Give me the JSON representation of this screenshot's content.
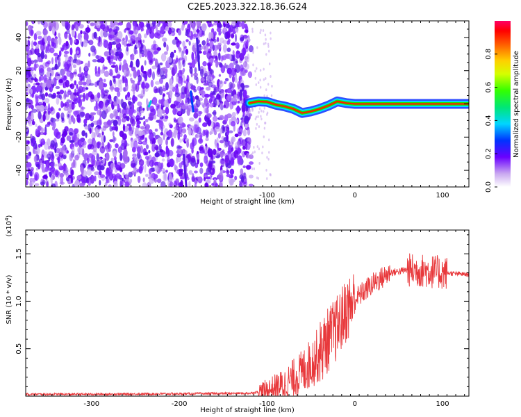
{
  "title": "C2E5.2023.322.18.36.G24",
  "chart_data": [
    {
      "type": "heatmap",
      "xlabel": "Height of straight line (km)",
      "ylabel": "Frequency (Hz)",
      "xlim": [
        -375,
        130
      ],
      "ylim": [
        -50,
        50
      ],
      "xticks": [
        -300,
        -200,
        -100,
        0,
        100
      ],
      "yticks": [
        -40,
        -20,
        0,
        20,
        40
      ],
      "colorbar": {
        "label": "Normalized spectral amplitude",
        "range": [
          0.0,
          1.0
        ],
        "ticks": [
          0.0,
          0.2,
          0.4,
          0.6,
          0.8
        ],
        "tick_labels": [
          "0.0",
          "0.2",
          "0.4",
          "0.6",
          "0.8"
        ]
      },
      "noise_region_x": [
        -375,
        -118
      ],
      "signal_trace": {
        "x": [
          -120,
          -110,
          -100,
          -90,
          -80,
          -70,
          -60,
          -55,
          -50,
          -40,
          -30,
          -20,
          -10,
          0,
          50,
          100,
          130
        ],
        "y": [
          0.5,
          1.5,
          1.2,
          -0.5,
          -1.5,
          -3,
          -5.5,
          -5,
          -4.5,
          -3,
          -1,
          1.5,
          0.5,
          0,
          0,
          0,
          0
        ]
      }
    },
    {
      "type": "line",
      "xlabel": "Height of straight line (km)",
      "ylabel": "SNR (10 * v/v)",
      "y_multiplier": "(x10",
      "y_multiplier_exp": "4",
      "y_multiplier_close": ")",
      "xlim": [
        -375,
        130
      ],
      "ylim": [
        0,
        1.75
      ],
      "xticks": [
        -300,
        -200,
        -100,
        0,
        100
      ],
      "yticks": [
        0.5,
        1.0,
        1.5
      ],
      "ytick_labels": [
        "0.5",
        "1.0",
        "1.5"
      ],
      "color": "#e8393c",
      "series": [
        {
          "x": [
            -375,
            -300,
            -200,
            -120,
            -100,
            -80,
            -60,
            -40,
            -30,
            -20,
            -10,
            0,
            20,
            40,
            60,
            80,
            100,
            130
          ],
          "values": [
            0.02,
            0.02,
            0.025,
            0.03,
            0.06,
            0.12,
            0.25,
            0.45,
            0.6,
            0.72,
            0.9,
            1.02,
            1.18,
            1.3,
            1.33,
            1.32,
            1.3,
            1.28
          ]
        }
      ]
    }
  ]
}
